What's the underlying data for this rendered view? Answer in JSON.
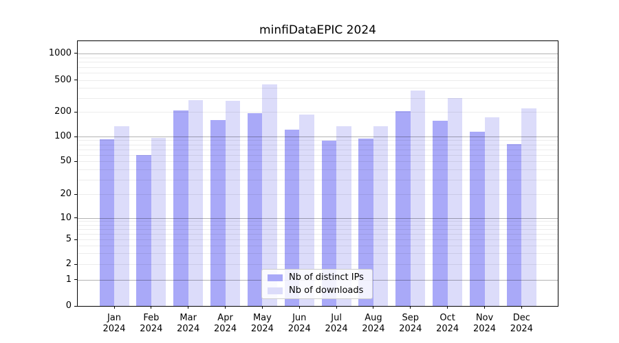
{
  "title": "minfiDataEPIC 2024",
  "legend": {
    "items": [
      {
        "label": "Nb of distinct IPs",
        "color": "#a9a9f8"
      },
      {
        "label": "Nb of downloads",
        "color": "#dcdcfa"
      }
    ]
  },
  "axes": {
    "y_tick_labels": [
      "0",
      "1",
      "2",
      "5",
      "10",
      "20",
      "50",
      "100",
      "200",
      "500",
      "1000"
    ],
    "x_tick_labels": [
      "Jan 2024",
      "Feb 2024",
      "Mar 2024",
      "Apr 2024",
      "May 2024",
      "Jun 2024",
      "Jul 2024",
      "Aug 2024",
      "Sep 2024",
      "Oct 2024",
      "Nov 2024",
      "Dec 2024"
    ]
  },
  "chart_data": {
    "type": "bar",
    "title": "minfiDataEPIC 2024",
    "categories": [
      "Jan 2024",
      "Feb 2024",
      "Mar 2024",
      "Apr 2024",
      "May 2024",
      "Jun 2024",
      "Jul 2024",
      "Aug 2024",
      "Sep 2024",
      "Oct 2024",
      "Nov 2024",
      "Dec 2024"
    ],
    "series": [
      {
        "name": "Nb of distinct IPs",
        "color": "#a9a9f8",
        "values": [
          93,
          60,
          209,
          158,
          193,
          121,
          89,
          95,
          207,
          156,
          115,
          81
        ]
      },
      {
        "name": "Nb of downloads",
        "color": "#dcdcfa",
        "values": [
          133,
          96,
          280,
          275,
          445,
          186,
          135,
          133,
          370,
          300,
          173,
          220
        ]
      }
    ],
    "xlabel": "",
    "ylabel": "",
    "yscale": "symlog",
    "yticks": [
      0,
      1,
      2,
      5,
      10,
      20,
      50,
      100,
      200,
      500,
      1000
    ],
    "ylim": [
      0,
      1400
    ],
    "grid": "horizontal; faint minor lines at 2-9 per decade, darker major lines at 1, 10, 100, 1000",
    "legend_position": "lower center",
    "bar_style": "paired, grid lines drawn above bars"
  },
  "colors": {
    "background": "#ffffff",
    "spine": "#000000",
    "major_grid": "rgba(0,0,0,0.30)",
    "minor_grid": "rgba(0,0,0,0.075)",
    "legend_border": "#cccccc"
  }
}
